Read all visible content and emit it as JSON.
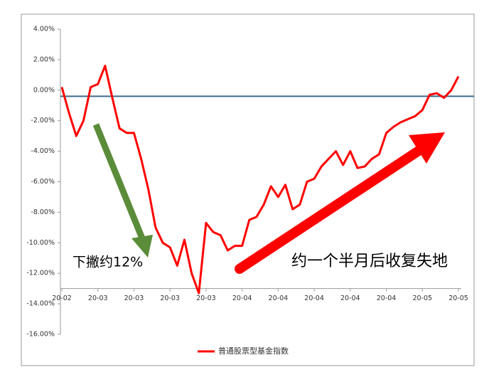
{
  "chart_data": {
    "type": "line",
    "categories": [
      "20-02",
      null,
      null,
      null,
      null,
      "20-03",
      null,
      null,
      null,
      null,
      "20-03",
      null,
      null,
      null,
      null,
      "20-03",
      null,
      null,
      null,
      null,
      "20-03",
      null,
      null,
      null,
      null,
      "20-04",
      null,
      null,
      null,
      null,
      "20-04",
      null,
      null,
      null,
      null,
      "20-04",
      null,
      null,
      null,
      null,
      "20-04",
      null,
      null,
      null,
      null,
      "20-04",
      null,
      null,
      null,
      null,
      "20-05",
      null,
      null,
      null,
      null,
      "20-05"
    ],
    "series": [
      {
        "name": "普通股票型基金指数",
        "color": "#ff0000",
        "values": [
          0.2,
          -1.5,
          -3.0,
          -2.0,
          0.2,
          0.4,
          1.6,
          -0.5,
          -2.5,
          -2.8,
          -2.8,
          -4.5,
          -6.5,
          -9.0,
          -10.0,
          -10.3,
          -11.5,
          -9.8,
          -12.0,
          -13.3,
          -8.7,
          -9.3,
          -9.5,
          -10.5,
          -10.2,
          -10.2,
          -8.5,
          -8.3,
          -7.5,
          -6.3,
          -7.0,
          -6.2,
          -7.8,
          -7.5,
          -6.0,
          -5.8,
          -5.0,
          -4.5,
          -4.0,
          -4.9,
          -4.0,
          -5.1,
          -5.0,
          -4.5,
          -4.2,
          -2.8,
          -2.4,
          -2.1,
          -1.9,
          -1.7,
          -1.3,
          -0.3,
          -0.2,
          -0.5,
          0.0,
          0.9
        ]
      }
    ],
    "ylim": [
      -16,
      4
    ],
    "yticks": [
      {
        "value": -16,
        "label": "-16.00%"
      },
      {
        "value": -14,
        "label": "-14.00%"
      },
      {
        "value": -12,
        "label": "-12.00%"
      },
      {
        "value": -10,
        "label": "-10.00%"
      },
      {
        "value": -8,
        "label": "-8.00%"
      },
      {
        "value": -6,
        "label": "-6.00%"
      },
      {
        "value": -4,
        "label": "-4.00%"
      },
      {
        "value": -2,
        "label": "-2.00%"
      },
      {
        "value": 0,
        "label": "0.00%"
      },
      {
        "value": 2,
        "label": "2.00%"
      },
      {
        "value": 4,
        "label": "4.00%"
      }
    ],
    "x_axis_crosses": -13,
    "reference_line": {
      "value": -0.4,
      "color": "#3b6b8c"
    },
    "annotations": [
      {
        "text": "下撇约12%"
      },
      {
        "text": "约一个半月后收复失地"
      }
    ],
    "legend": "bottom"
  }
}
